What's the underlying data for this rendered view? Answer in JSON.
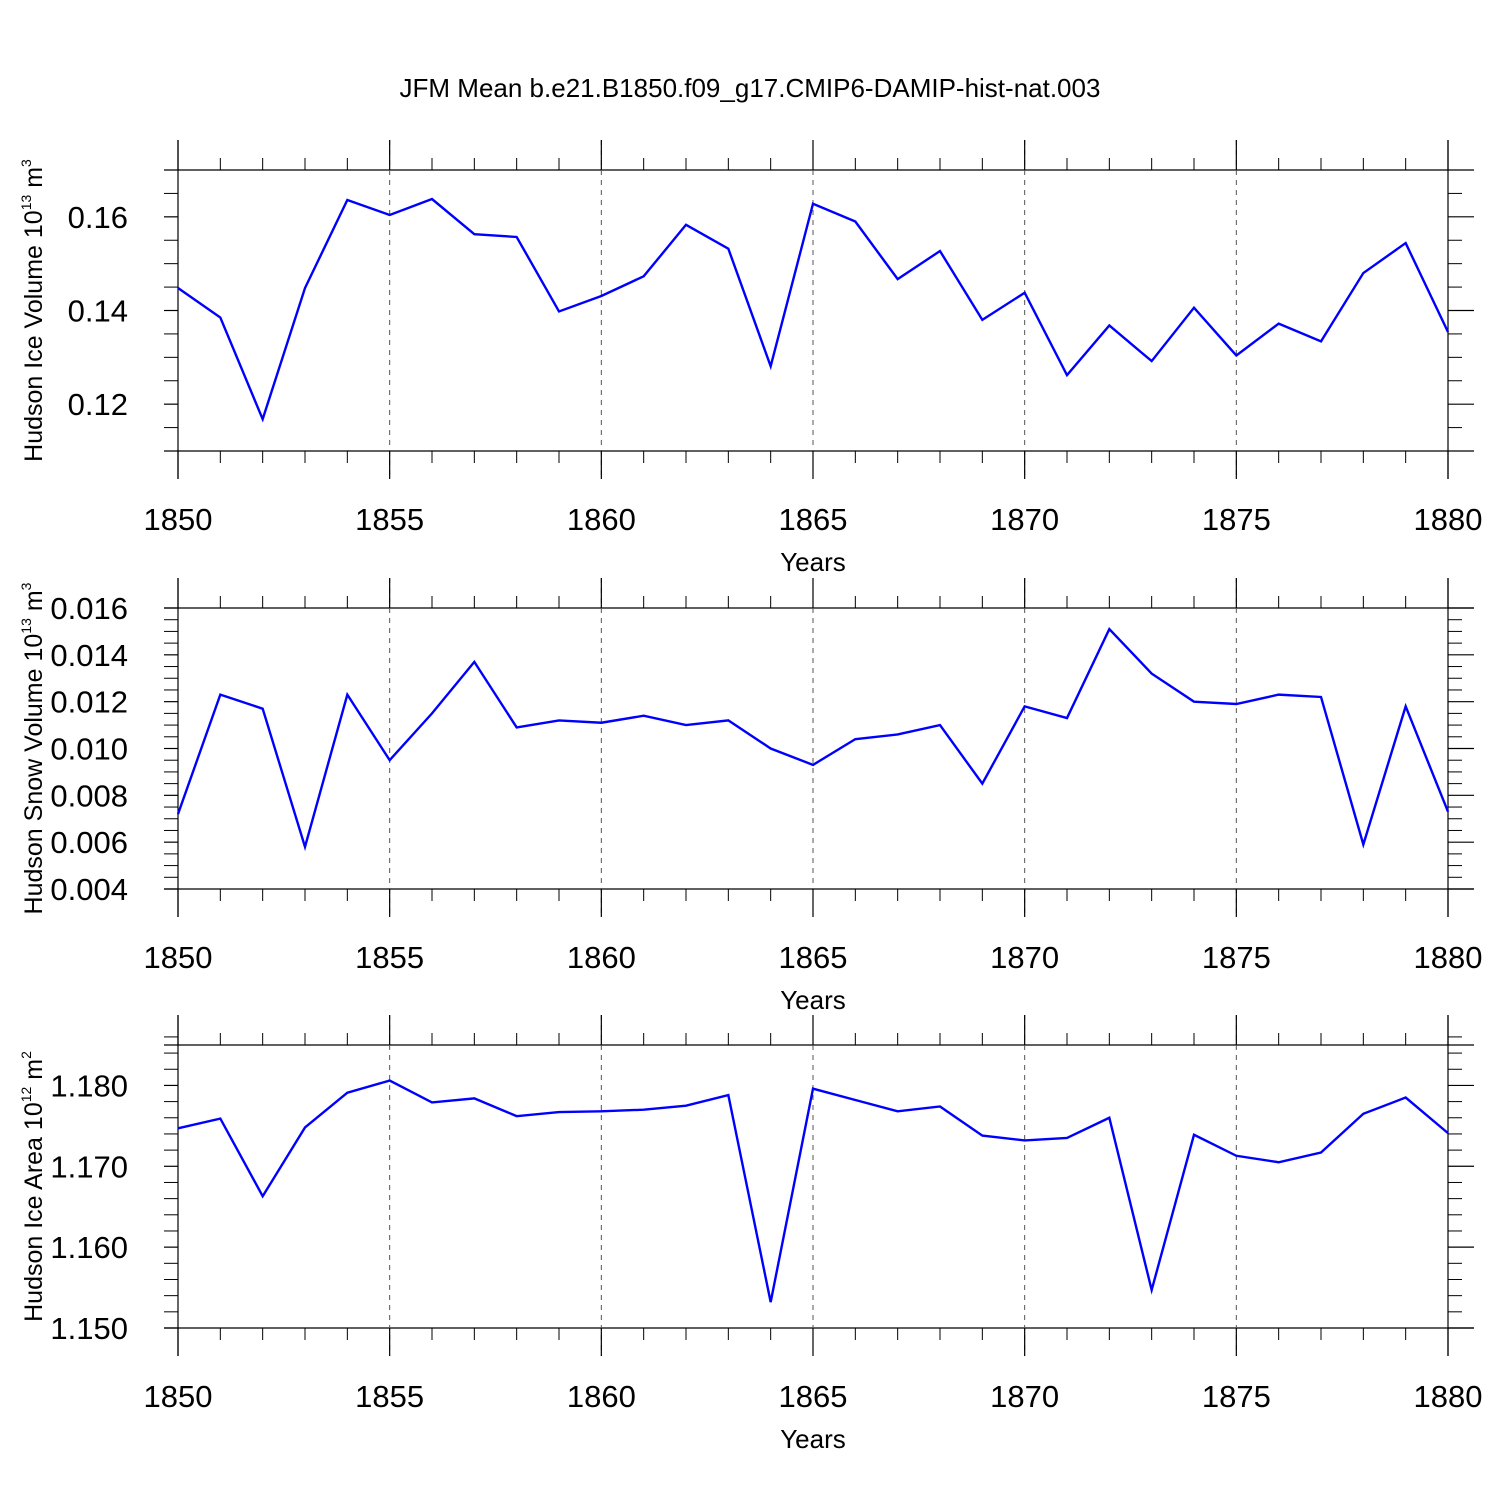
{
  "title": "JFM Mean b.e21.B1850.f09_g17.CMIP6-DAMIP-hist-nat.003",
  "line_color": "#0000ff",
  "chart_data": [
    {
      "type": "line",
      "xlabel": "Years",
      "ylabel": {
        "text": "Hudson Ice Volume 10",
        "exp": "13",
        "unit": " m",
        "unit_exp": "3"
      },
      "x": [
        1850,
        1851,
        1852,
        1853,
        1854,
        1855,
        1856,
        1857,
        1858,
        1859,
        1860,
        1861,
        1862,
        1863,
        1864,
        1865,
        1866,
        1867,
        1868,
        1869,
        1870,
        1871,
        1872,
        1873,
        1874,
        1875,
        1876,
        1877,
        1878,
        1879,
        1880
      ],
      "values": [
        0.1448,
        0.1385,
        0.1168,
        0.1448,
        0.1636,
        0.1604,
        0.1638,
        0.1563,
        0.1557,
        0.1398,
        0.1431,
        0.1473,
        0.1583,
        0.1532,
        0.1281,
        0.1628,
        0.159,
        0.1467,
        0.1527,
        0.138,
        0.1438,
        0.1262,
        0.1368,
        0.1292,
        0.1406,
        0.1304,
        0.1372,
        0.1334,
        0.148,
        0.1544,
        0.1354
      ],
      "xlim": [
        1850,
        1880
      ],
      "ylim": [
        0.11,
        0.17
      ],
      "xticks": [
        1850,
        1855,
        1860,
        1865,
        1870,
        1875,
        1880
      ],
      "xtick_labels": [
        "1850",
        "1855",
        "1860",
        "1865",
        "1870",
        "1875",
        "1880"
      ],
      "yticks": [
        0.12,
        0.14,
        0.16
      ],
      "ytick_labels": [
        "0.12",
        "0.14",
        "0.16"
      ],
      "yminor_step": 0.005,
      "grid": "vertical dashed at major x ticks"
    },
    {
      "type": "line",
      "xlabel": "Years",
      "ylabel": {
        "text": "Hudson Snow Volume 10",
        "exp": "13",
        "unit": " m",
        "unit_exp": "3"
      },
      "x": [
        1850,
        1851,
        1852,
        1853,
        1854,
        1855,
        1856,
        1857,
        1858,
        1859,
        1860,
        1861,
        1862,
        1863,
        1864,
        1865,
        1866,
        1867,
        1868,
        1869,
        1870,
        1871,
        1872,
        1873,
        1874,
        1875,
        1876,
        1877,
        1878,
        1879,
        1880
      ],
      "values": [
        0.0072,
        0.0123,
        0.0117,
        0.0058,
        0.0123,
        0.0095,
        0.0115,
        0.0137,
        0.0109,
        0.0112,
        0.0111,
        0.0114,
        0.011,
        0.0112,
        0.01,
        0.0093,
        0.0104,
        0.0106,
        0.011,
        0.0085,
        0.0118,
        0.0113,
        0.0151,
        0.0132,
        0.012,
        0.0119,
        0.0123,
        0.0122,
        0.0059,
        0.0118,
        0.0073
      ],
      "xlim": [
        1850,
        1880
      ],
      "ylim": [
        0.004,
        0.016
      ],
      "xticks": [
        1850,
        1855,
        1860,
        1865,
        1870,
        1875,
        1880
      ],
      "xtick_labels": [
        "1850",
        "1855",
        "1860",
        "1865",
        "1870",
        "1875",
        "1880"
      ],
      "yticks": [
        0.004,
        0.006,
        0.008,
        0.01,
        0.012,
        0.014,
        0.016
      ],
      "ytick_labels": [
        "0.004",
        "0.006",
        "0.008",
        "0.010",
        "0.012",
        "0.014",
        "0.016"
      ],
      "yminor_step": 0.0005,
      "grid": "vertical dashed at major x ticks"
    },
    {
      "type": "line",
      "xlabel": "Years",
      "ylabel": {
        "text": "Hudson Ice Area 10",
        "exp": "12",
        "unit": " m",
        "unit_exp": "2"
      },
      "x": [
        1850,
        1851,
        1852,
        1853,
        1854,
        1855,
        1856,
        1857,
        1858,
        1859,
        1860,
        1861,
        1862,
        1863,
        1864,
        1865,
        1866,
        1867,
        1868,
        1869,
        1870,
        1871,
        1872,
        1873,
        1874,
        1875,
        1876,
        1877,
        1878,
        1879,
        1880
      ],
      "values": [
        1.1747,
        1.1759,
        1.1663,
        1.1748,
        1.1791,
        1.1806,
        1.1779,
        1.1784,
        1.1762,
        1.1767,
        1.1768,
        1.177,
        1.1775,
        1.1788,
        1.1532,
        1.1796,
        1.1782,
        1.1768,
        1.1774,
        1.1738,
        1.1732,
        1.1735,
        1.176,
        1.1547,
        1.1739,
        1.1713,
        1.1705,
        1.1717,
        1.1765,
        1.1785,
        1.1741
      ],
      "xlim": [
        1850,
        1880
      ],
      "ylim": [
        1.15,
        1.185
      ],
      "xticks": [
        1850,
        1855,
        1860,
        1865,
        1870,
        1875,
        1880
      ],
      "xtick_labels": [
        "1850",
        "1855",
        "1860",
        "1865",
        "1870",
        "1875",
        "1880"
      ],
      "yticks": [
        1.15,
        1.16,
        1.17,
        1.18
      ],
      "ytick_labels": [
        "1.150",
        "1.160",
        "1.170",
        "1.180"
      ],
      "yminor_step": 0.002,
      "grid": "vertical dashed at major x ticks"
    }
  ]
}
